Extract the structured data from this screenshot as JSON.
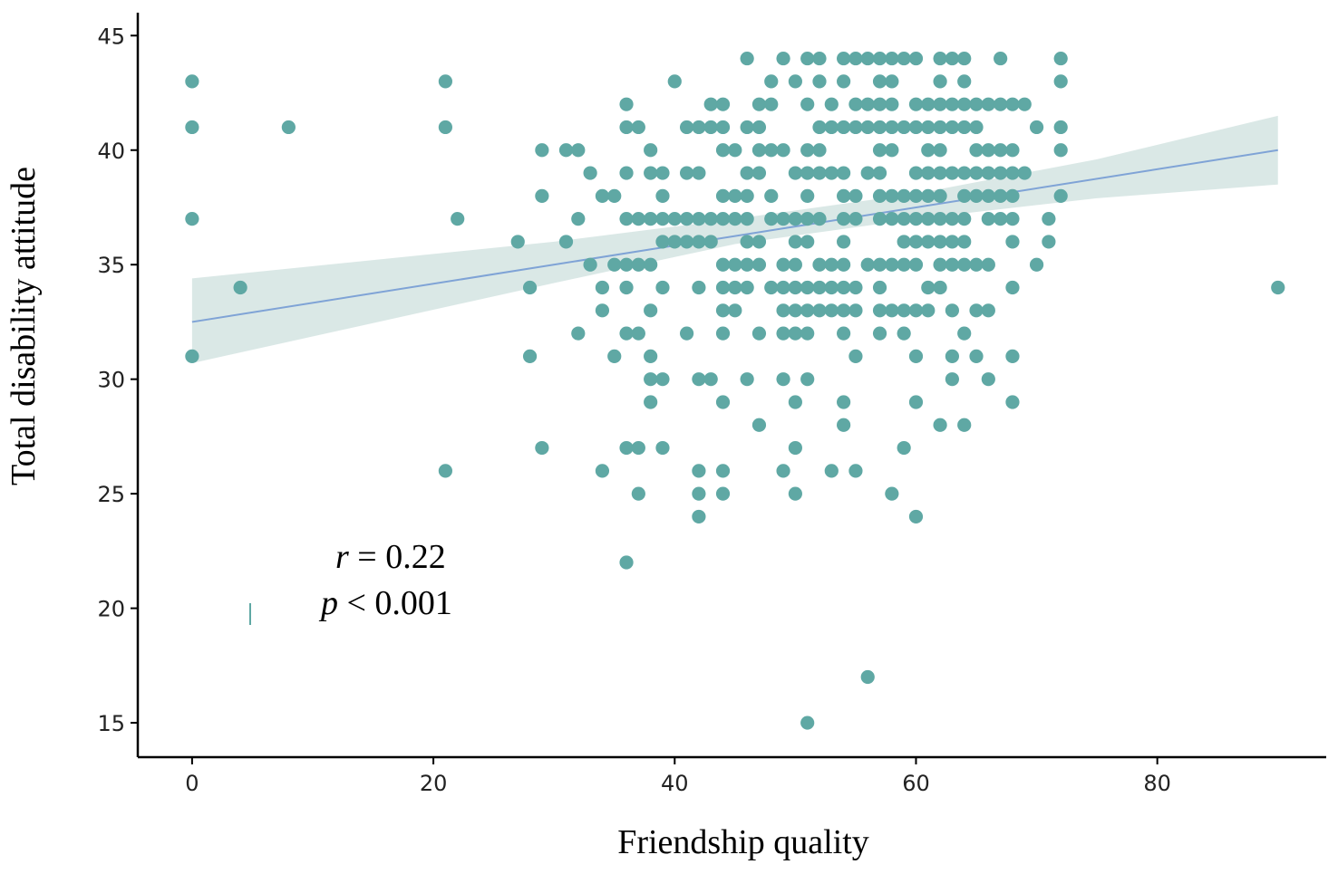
{
  "colors": {
    "point": "#5fa8a4",
    "fit_line": "#7fa3d6",
    "ci_band": "#d3e4e2",
    "axis": "#000000"
  },
  "chart_data": {
    "type": "scatter",
    "title": "",
    "xlabel": "Friendship quality",
    "ylabel": "Total disability attitude",
    "xlim": [
      -4.5,
      94
    ],
    "ylim": [
      13.5,
      46
    ],
    "xticks": [
      0,
      20,
      40,
      60,
      80
    ],
    "yticks": [
      15,
      20,
      25,
      30,
      35,
      40,
      45
    ],
    "xtick_labels": [
      "0",
      "20",
      "40",
      "60",
      "80"
    ],
    "ytick_labels": [
      "15",
      "20",
      "25",
      "30",
      "35",
      "40",
      "45"
    ],
    "grid": false,
    "annotation": {
      "r_symbol": "r",
      "r_text": " = 0.22",
      "p_symbol": "p",
      "p_text": " < 0.001"
    },
    "fit": {
      "line": [
        [
          0,
          32.5
        ],
        [
          90,
          40
        ]
      ],
      "ci_upper": [
        [
          0,
          34.4
        ],
        [
          30,
          36.0
        ],
        [
          45,
          37.0
        ],
        [
          60,
          38.1
        ],
        [
          75,
          39.6
        ],
        [
          90,
          41.5
        ]
      ],
      "ci_lower": [
        [
          0,
          30.7
        ],
        [
          30,
          34.2
        ],
        [
          45,
          35.9
        ],
        [
          60,
          37.0
        ],
        [
          75,
          37.9
        ],
        [
          90,
          38.5
        ]
      ]
    },
    "points": [
      [
        0,
        43
      ],
      [
        0,
        41
      ],
      [
        0,
        37
      ],
      [
        0,
        31
      ],
      [
        4,
        34
      ],
      [
        8,
        41
      ],
      [
        21,
        43
      ],
      [
        21,
        41
      ],
      [
        21,
        26
      ],
      [
        22,
        37
      ],
      [
        27,
        36
      ],
      [
        28,
        34
      ],
      [
        28,
        31
      ],
      [
        29,
        40
      ],
      [
        29,
        38
      ],
      [
        29,
        27
      ],
      [
        31,
        40
      ],
      [
        32,
        40
      ],
      [
        31,
        36
      ],
      [
        32,
        37
      ],
      [
        32,
        32
      ],
      [
        33,
        39
      ],
      [
        33,
        35
      ],
      [
        34,
        38
      ],
      [
        35,
        38
      ],
      [
        34,
        34
      ],
      [
        34,
        33
      ],
      [
        35,
        31
      ],
      [
        34,
        26
      ],
      [
        35,
        35
      ],
      [
        36,
        35
      ],
      [
        37,
        35
      ],
      [
        38,
        35
      ],
      [
        36,
        42
      ],
      [
        36,
        41
      ],
      [
        37,
        41
      ],
      [
        36,
        39
      ],
      [
        36,
        37
      ],
      [
        37,
        37
      ],
      [
        38,
        37
      ],
      [
        39,
        37
      ],
      [
        36,
        34
      ],
      [
        36,
        32
      ],
      [
        37,
        32
      ],
      [
        36,
        27
      ],
      [
        37,
        27
      ],
      [
        36,
        22
      ],
      [
        37,
        25
      ],
      [
        38,
        40
      ],
      [
        38,
        39
      ],
      [
        39,
        39
      ],
      [
        39,
        38
      ],
      [
        38,
        33
      ],
      [
        38,
        31
      ],
      [
        38,
        30
      ],
      [
        39,
        30
      ],
      [
        38,
        29
      ],
      [
        39,
        34
      ],
      [
        39,
        27
      ],
      [
        39,
        36
      ],
      [
        40,
        36
      ],
      [
        40,
        43
      ],
      [
        40,
        37
      ],
      [
        41,
        37
      ],
      [
        42,
        37
      ],
      [
        41,
        36
      ],
      [
        41,
        41
      ],
      [
        42,
        41
      ],
      [
        41,
        39
      ],
      [
        42,
        39
      ],
      [
        41,
        32
      ],
      [
        42,
        36
      ],
      [
        43,
        36
      ],
      [
        42,
        34
      ],
      [
        42,
        30
      ],
      [
        43,
        30
      ],
      [
        42,
        26
      ],
      [
        42,
        25
      ],
      [
        42,
        24
      ],
      [
        43,
        42
      ],
      [
        44,
        42
      ],
      [
        43,
        41
      ],
      [
        43,
        37
      ],
      [
        44,
        37
      ],
      [
        44,
        41
      ],
      [
        44,
        40
      ],
      [
        45,
        40
      ],
      [
        44,
        38
      ],
      [
        45,
        38
      ],
      [
        46,
        38
      ],
      [
        44,
        35
      ],
      [
        45,
        35
      ],
      [
        44,
        34
      ],
      [
        45,
        34
      ],
      [
        46,
        34
      ],
      [
        44,
        33
      ],
      [
        45,
        33
      ],
      [
        44,
        32
      ],
      [
        44,
        29
      ],
      [
        44,
        26
      ],
      [
        44,
        25
      ],
      [
        45,
        37
      ],
      [
        46,
        37
      ],
      [
        46,
        36
      ],
      [
        47,
        36
      ],
      [
        46,
        44
      ],
      [
        46,
        41
      ],
      [
        47,
        41
      ],
      [
        46,
        39
      ],
      [
        47,
        39
      ],
      [
        46,
        35
      ],
      [
        47,
        35
      ],
      [
        46,
        30
      ],
      [
        47,
        32
      ],
      [
        47,
        28
      ],
      [
        47,
        42
      ],
      [
        48,
        42
      ],
      [
        47,
        40
      ],
      [
        48,
        40
      ],
      [
        49,
        40
      ],
      [
        48,
        43
      ],
      [
        48,
        38
      ],
      [
        48,
        37
      ],
      [
        49,
        37
      ],
      [
        50,
        37
      ],
      [
        49,
        35
      ],
      [
        50,
        35
      ],
      [
        48,
        34
      ],
      [
        49,
        34
      ],
      [
        50,
        34
      ],
      [
        51,
        34
      ],
      [
        52,
        34
      ],
      [
        53,
        34
      ],
      [
        54,
        34
      ],
      [
        55,
        34
      ],
      [
        49,
        44
      ],
      [
        49,
        30
      ],
      [
        49,
        33
      ],
      [
        49,
        32
      ],
      [
        50,
        32
      ],
      [
        51,
        32
      ],
      [
        49,
        26
      ],
      [
        50,
        43
      ],
      [
        50,
        39
      ],
      [
        51,
        39
      ],
      [
        52,
        39
      ],
      [
        53,
        39
      ],
      [
        54,
        39
      ],
      [
        50,
        36
      ],
      [
        51,
        36
      ],
      [
        50,
        33
      ],
      [
        51,
        33
      ],
      [
        52,
        33
      ],
      [
        50,
        29
      ],
      [
        50,
        27
      ],
      [
        50,
        25
      ],
      [
        51,
        44
      ],
      [
        52,
        44
      ],
      [
        51,
        42
      ],
      [
        51,
        40
      ],
      [
        52,
        40
      ],
      [
        51,
        38
      ],
      [
        51,
        37
      ],
      [
        52,
        37
      ],
      [
        51,
        30
      ],
      [
        51,
        15
      ],
      [
        52,
        43
      ],
      [
        52,
        41
      ],
      [
        53,
        41
      ],
      [
        54,
        41
      ],
      [
        55,
        41
      ],
      [
        56,
        41
      ],
      [
        57,
        41
      ],
      [
        58,
        41
      ],
      [
        59,
        41
      ],
      [
        60,
        41
      ],
      [
        61,
        41
      ],
      [
        62,
        41
      ],
      [
        63,
        41
      ],
      [
        64,
        41
      ],
      [
        65,
        41
      ],
      [
        53,
        42
      ],
      [
        52,
        35
      ],
      [
        53,
        35
      ],
      [
        54,
        35
      ],
      [
        53,
        33
      ],
      [
        53,
        26
      ],
      [
        54,
        37
      ],
      [
        55,
        37
      ],
      [
        54,
        44
      ],
      [
        55,
        44
      ],
      [
        56,
        44
      ],
      [
        57,
        44
      ],
      [
        58,
        44
      ],
      [
        59,
        44
      ],
      [
        60,
        44
      ],
      [
        54,
        43
      ],
      [
        54,
        38
      ],
      [
        55,
        38
      ],
      [
        54,
        36
      ],
      [
        54,
        33
      ],
      [
        55,
        33
      ],
      [
        54,
        32
      ],
      [
        54,
        29
      ],
      [
        54,
        28
      ],
      [
        55,
        26
      ],
      [
        55,
        42
      ],
      [
        56,
        42
      ],
      [
        57,
        42
      ],
      [
        58,
        42
      ],
      [
        56,
        39
      ],
      [
        57,
        39
      ],
      [
        56,
        35
      ],
      [
        57,
        35
      ],
      [
        58,
        35
      ],
      [
        55,
        31
      ],
      [
        57,
        43
      ],
      [
        58,
        43
      ],
      [
        57,
        40
      ],
      [
        58,
        40
      ],
      [
        57,
        38
      ],
      [
        58,
        38
      ],
      [
        59,
        38
      ],
      [
        60,
        38
      ],
      [
        61,
        38
      ],
      [
        62,
        38
      ],
      [
        57,
        37
      ],
      [
        58,
        37
      ],
      [
        59,
        37
      ],
      [
        60,
        37
      ],
      [
        61,
        37
      ],
      [
        62,
        37
      ],
      [
        57,
        34
      ],
      [
        57,
        33
      ],
      [
        58,
        33
      ],
      [
        57,
        32
      ],
      [
        59,
        32
      ],
      [
        58,
        25
      ],
      [
        59,
        27
      ],
      [
        56,
        17
      ],
      [
        59,
        36
      ],
      [
        60,
        36
      ],
      [
        59,
        35
      ],
      [
        60,
        35
      ],
      [
        59,
        33
      ],
      [
        60,
        33
      ],
      [
        60,
        42
      ],
      [
        61,
        42
      ],
      [
        62,
        42
      ],
      [
        60,
        39
      ],
      [
        61,
        39
      ],
      [
        62,
        39
      ],
      [
        60,
        31
      ],
      [
        60,
        29
      ],
      [
        60,
        24
      ],
      [
        61,
        40
      ],
      [
        61,
        36
      ],
      [
        62,
        36
      ],
      [
        63,
        36
      ],
      [
        64,
        36
      ],
      [
        61,
        34
      ],
      [
        62,
        34
      ],
      [
        61,
        33
      ],
      [
        62,
        44
      ],
      [
        63,
        44
      ],
      [
        64,
        44
      ],
      [
        62,
        43
      ],
      [
        64,
        43
      ],
      [
        62,
        40
      ],
      [
        62,
        35
      ],
      [
        62,
        28
      ],
      [
        63,
        42
      ],
      [
        64,
        42
      ],
      [
        63,
        39
      ],
      [
        64,
        39
      ],
      [
        65,
        39
      ],
      [
        66,
        39
      ],
      [
        67,
        39
      ],
      [
        68,
        39
      ],
      [
        69,
        39
      ],
      [
        63,
        37
      ],
      [
        64,
        37
      ],
      [
        63,
        35
      ],
      [
        63,
        31
      ],
      [
        63,
        30
      ],
      [
        63,
        33
      ],
      [
        64,
        38
      ],
      [
        65,
        38
      ],
      [
        66,
        38
      ],
      [
        67,
        38
      ],
      [
        68,
        38
      ],
      [
        64,
        35
      ],
      [
        65,
        35
      ],
      [
        66,
        35
      ],
      [
        64,
        32
      ],
      [
        64,
        28
      ],
      [
        65,
        42
      ],
      [
        66,
        42
      ],
      [
        67,
        42
      ],
      [
        68,
        42
      ],
      [
        65,
        40
      ],
      [
        65,
        31
      ],
      [
        65,
        33
      ],
      [
        66,
        33
      ],
      [
        66,
        40
      ],
      [
        67,
        40
      ],
      [
        68,
        40
      ],
      [
        66,
        37
      ],
      [
        67,
        37
      ],
      [
        68,
        37
      ],
      [
        66,
        30
      ],
      [
        67,
        44
      ],
      [
        68,
        36
      ],
      [
        68,
        34
      ],
      [
        68,
        31
      ],
      [
        68,
        29
      ],
      [
        69,
        42
      ],
      [
        70,
        41
      ],
      [
        70,
        35
      ],
      [
        71,
        37
      ],
      [
        71,
        36
      ],
      [
        72,
        44
      ],
      [
        72,
        43
      ],
      [
        72,
        41
      ],
      [
        72,
        40
      ],
      [
        72,
        38
      ],
      [
        90,
        34
      ]
    ]
  }
}
